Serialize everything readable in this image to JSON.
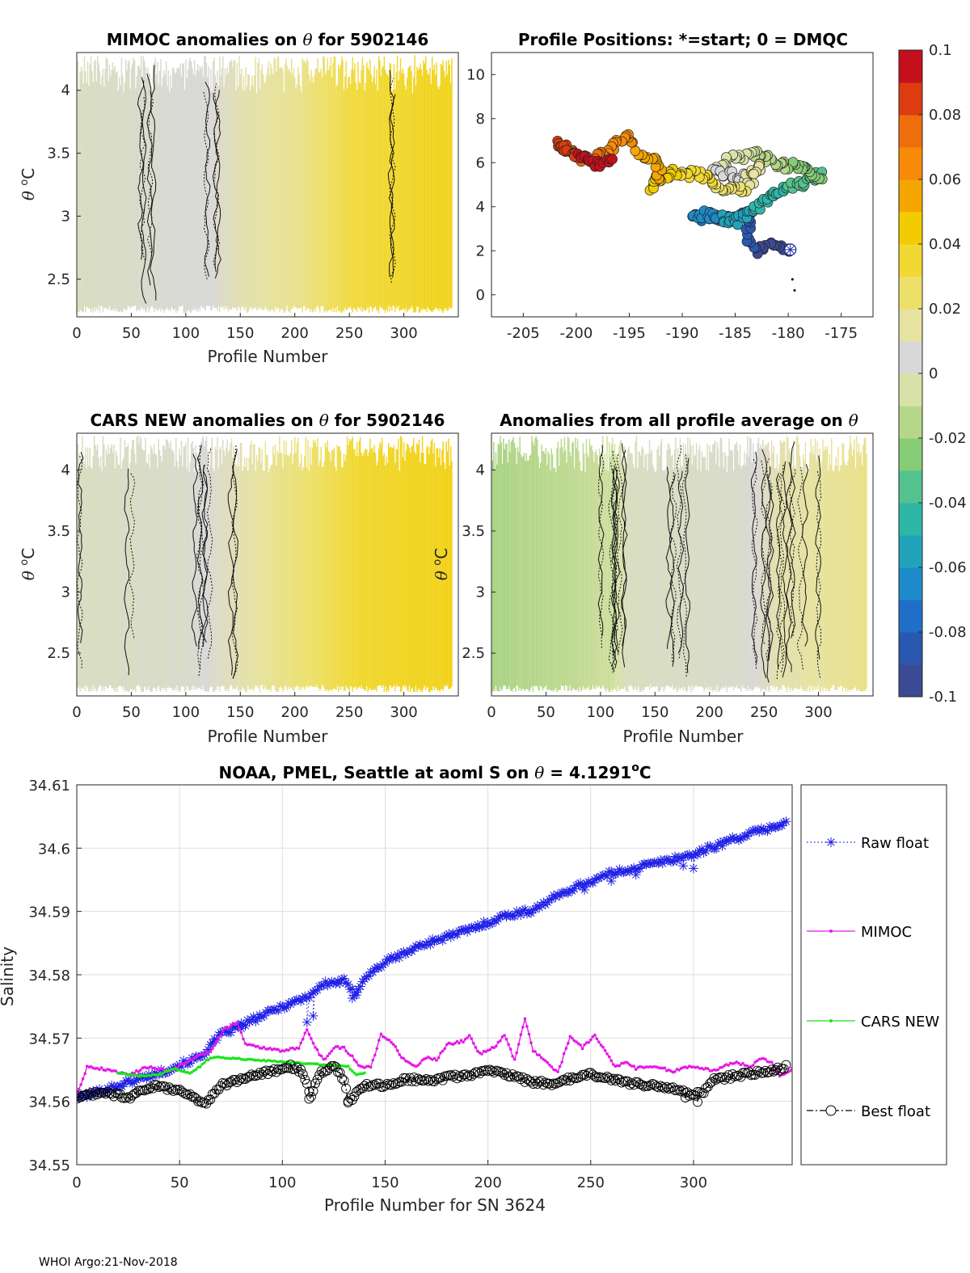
{
  "footer": "WHOI Argo:21-Nov-2018",
  "chart_data": [
    {
      "id": "mimoc",
      "type": "heatmap",
      "title_main": "MIMOC anomalies on ",
      "title_theta": "θ",
      "title_rest": "  for 5902146",
      "xlabel": "Profile Number",
      "ylabel_theta": "θ",
      "ylabel_unit": "C",
      "xlim": [
        0,
        350
      ],
      "ylim": [
        2.2,
        4.3
      ],
      "xticks": [
        0,
        50,
        100,
        150,
        200,
        250,
        300
      ],
      "yticks": [
        2.5,
        3,
        3.5,
        4
      ],
      "anomaly_profile": [
        [
          0,
          0.0
        ],
        [
          60,
          0.002
        ],
        [
          125,
          0.006
        ],
        [
          150,
          0.012
        ],
        [
          200,
          0.018
        ],
        [
          255,
          0.033
        ],
        [
          350,
          0.04
        ]
      ],
      "contours_x": [
        60,
        70,
        120,
        130,
        290
      ]
    },
    {
      "id": "positions",
      "type": "scatter",
      "title": "Profile Positions: *=start; 0 = DMQC",
      "xlim": [
        -208,
        -172
      ],
      "ylim": [
        -1,
        11
      ],
      "xticks": [
        -205,
        -200,
        -195,
        -190,
        -185,
        -180,
        -175
      ],
      "yticks": [
        0,
        2,
        4,
        6,
        8,
        10
      ],
      "track_waypoints": [
        [
          -179.8,
          2.05
        ],
        [
          -181,
          2.3
        ],
        [
          -183,
          2.0
        ],
        [
          -184,
          2.6
        ],
        [
          -183.5,
          3.6
        ],
        [
          -186,
          3.5
        ],
        [
          -189,
          3.5
        ],
        [
          -188,
          3.7
        ],
        [
          -185,
          3.3
        ],
        [
          -183.5,
          3.8
        ],
        [
          -182,
          4.3
        ],
        [
          -181,
          4.7
        ],
        [
          -178.5,
          5.1
        ],
        [
          -177,
          5.5
        ],
        [
          -176.8,
          5.2
        ],
        [
          -178.5,
          5.8
        ],
        [
          -181,
          5.9
        ],
        [
          -182.5,
          6.4
        ],
        [
          -185.5,
          6.2
        ],
        [
          -187,
          5.6
        ],
        [
          -184,
          5.3
        ],
        [
          -182.5,
          5.9
        ],
        [
          -184,
          4.8
        ],
        [
          -186,
          4.7
        ],
        [
          -188,
          5.4
        ],
        [
          -191,
          5.6
        ],
        [
          -193,
          4.8
        ],
        [
          -192,
          5.8
        ],
        [
          -194,
          6.4
        ],
        [
          -195,
          7.2
        ],
        [
          -197,
          6.5
        ],
        [
          -199,
          6.1
        ],
        [
          -202,
          6.9
        ],
        [
          -200,
          6.3
        ],
        [
          -198,
          5.9
        ],
        [
          -196.5,
          6.1
        ]
      ],
      "n_profiles": 344,
      "dmqc_points": [
        [
          -179.6,
          0.7
        ],
        [
          -179.4,
          0.2
        ]
      ],
      "start": [
        -179.8,
        2.05
      ]
    },
    {
      "id": "cars",
      "type": "heatmap",
      "title_main": "CARS NEW anomalies on ",
      "title_theta": "θ",
      "title_rest": " for 5902146",
      "xlabel": "Profile Number",
      "ylabel_theta": "θ",
      "ylabel_unit": "C",
      "xlim": [
        0,
        350
      ],
      "ylim": [
        2.15,
        4.3
      ],
      "xticks": [
        0,
        50,
        100,
        150,
        200,
        250,
        300
      ],
      "yticks": [
        2.5,
        3,
        3.5,
        4
      ],
      "anomaly_profile": [
        [
          0,
          0.0
        ],
        [
          100,
          0.002
        ],
        [
          150,
          0.012
        ],
        [
          220,
          0.026
        ],
        [
          260,
          0.036
        ],
        [
          350,
          0.04
        ]
      ],
      "contours_x": [
        5,
        48,
        110,
        115,
        120,
        143
      ]
    },
    {
      "id": "allavg",
      "type": "heatmap",
      "title_main": "Anomalies from all profile average on ",
      "title_theta": "θ",
      "title_rest": "",
      "xlabel": "Profile Number",
      "ylabel_theta": "θ",
      "ylabel_unit": "C",
      "xlim": [
        0,
        350
      ],
      "ylim": [
        2.15,
        4.3
      ],
      "xticks": [
        0,
        50,
        100,
        150,
        200,
        250,
        300
      ],
      "yticks": [
        2.5,
        3,
        3.5,
        4
      ],
      "anomaly_profile": [
        [
          0,
          -0.018
        ],
        [
          80,
          -0.012
        ],
        [
          110,
          -0.008
        ],
        [
          125,
          0.0
        ],
        [
          230,
          0.002
        ],
        [
          260,
          0.012
        ],
        [
          350,
          0.02
        ]
      ],
      "contours_x": [
        100,
        110,
        115,
        120,
        165,
        175,
        180,
        240,
        250,
        255,
        262,
        268,
        275,
        285,
        300
      ]
    },
    {
      "id": "colorbar",
      "type": "colorbar",
      "limits": [
        -0.1,
        0.1
      ],
      "ticks": [
        "0.1",
        "0.08",
        "0.06",
        "0.04",
        "0.02",
        "0",
        "-0.02",
        "-0.04",
        "-0.06",
        "-0.08",
        "-0.1"
      ],
      "n_levels": 20
    },
    {
      "id": "salinity",
      "type": "line",
      "title_main": "NOAA, PMEL, Seattle at aoml S on ",
      "title_theta": "θ",
      "title_rest": " = 4.1291",
      "title_sup": "o",
      "title_unit": "C",
      "xlabel": "Profile Number for SN 3624",
      "ylabel": "Salinity",
      "xlim": [
        0,
        348
      ],
      "ylim": [
        34.55,
        34.61
      ],
      "xticks": [
        0,
        50,
        100,
        150,
        200,
        250,
        300
      ],
      "yticks": [
        "34.55",
        "34.56",
        "34.57",
        "34.58",
        "34.59",
        "34.6",
        "34.61"
      ],
      "grid": true,
      "legend": "outside-right",
      "series": [
        {
          "name": "Raw float",
          "color": "#1f1fe6",
          "marker": "asterisk",
          "line": "dotted",
          "keypoints": [
            [
              0,
              34.5605
            ],
            [
              20,
              34.5625
            ],
            [
              40,
              34.5645
            ],
            [
              60,
              34.567
            ],
            [
              70,
              34.5705
            ],
            [
              80,
              34.572
            ],
            [
              100,
              34.575
            ],
            [
              112,
              34.5765
            ],
            [
              120,
              34.5785
            ],
            [
              130,
              34.579
            ],
            [
              135,
              34.577
            ],
            [
              140,
              34.5795
            ],
            [
              150,
              34.582
            ],
            [
              170,
              34.585
            ],
            [
              190,
              34.587
            ],
            [
              210,
              34.5895
            ],
            [
              220,
              34.59
            ],
            [
              240,
              34.5935
            ],
            [
              260,
              34.596
            ],
            [
              280,
              34.5975
            ],
            [
              300,
              34.599
            ],
            [
              320,
              34.6015
            ],
            [
              345,
              34.604
            ]
          ],
          "dips": [
            [
              80,
              34.5715
            ],
            [
              112,
              34.5725
            ],
            [
              115,
              34.5735
            ],
            [
              134,
              34.5763
            ],
            [
              136,
              34.5768
            ],
            [
              247,
              34.5934
            ],
            [
              260,
              34.5948
            ],
            [
              272,
              34.5958
            ],
            [
              295,
              34.5972
            ],
            [
              300,
              34.5968
            ]
          ]
        },
        {
          "name": "MIMOC",
          "color": "#e619e6",
          "marker": "dot",
          "line": "solid",
          "keypoints": [
            [
              0,
              34.561
            ],
            [
              5,
              34.5655
            ],
            [
              15,
              34.565
            ],
            [
              25,
              34.5642
            ],
            [
              35,
              34.5655
            ],
            [
              45,
              34.5648
            ],
            [
              55,
              34.5665
            ],
            [
              65,
              34.568
            ],
            [
              72,
              34.5715
            ],
            [
              78,
              34.5725
            ],
            [
              82,
              34.569
            ],
            [
              90,
              34.5685
            ],
            [
              100,
              34.568
            ],
            [
              108,
              34.5685
            ],
            [
              112,
              34.5715
            ],
            [
              116,
              34.5685
            ],
            [
              120,
              34.5665
            ],
            [
              125,
              34.5685
            ],
            [
              130,
              34.5685
            ],
            [
              138,
              34.5655
            ],
            [
              143,
              34.5655
            ],
            [
              148,
              34.5705
            ],
            [
              153,
              34.5695
            ],
            [
              158,
              34.567
            ],
            [
              165,
              34.5655
            ],
            [
              170,
              34.567
            ],
            [
              175,
              34.5665
            ],
            [
              180,
              34.569
            ],
            [
              188,
              34.5695
            ],
            [
              191,
              34.5705
            ],
            [
              196,
              34.5675
            ],
            [
              203,
              34.5685
            ],
            [
              208,
              34.5705
            ],
            [
              213,
              34.5665
            ],
            [
              218,
              34.573
            ],
            [
              222,
              34.568
            ],
            [
              228,
              34.5665
            ],
            [
              234,
              34.5645
            ],
            [
              240,
              34.5702
            ],
            [
              246,
              34.5685
            ],
            [
              252,
              34.5705
            ],
            [
              258,
              34.5675
            ],
            [
              262,
              34.5655
            ],
            [
              268,
              34.5662
            ],
            [
              272,
              34.5652
            ],
            [
              280,
              34.5656
            ],
            [
              290,
              34.5648
            ],
            [
              300,
              34.5656
            ],
            [
              310,
              34.5648
            ],
            [
              320,
              34.5662
            ],
            [
              328,
              34.5655
            ],
            [
              333,
              34.5668
            ],
            [
              338,
              34.5662
            ],
            [
              342,
              34.5638
            ],
            [
              348,
              34.5652
            ]
          ]
        },
        {
          "name": "CARS NEW",
          "color": "#19e619",
          "marker": "dot",
          "line": "solid",
          "keypoints": [
            [
              20,
              34.5645
            ],
            [
              30,
              34.564
            ],
            [
              40,
              34.5642
            ],
            [
              47,
              34.5652
            ],
            [
              55,
              34.5645
            ],
            [
              60,
              34.5655
            ],
            [
              63,
              34.5665
            ],
            [
              67,
              34.567
            ],
            [
              132,
              34.5655
            ],
            [
              136,
              34.5642
            ],
            [
              140,
              34.5645
            ]
          ]
        },
        {
          "name": "Best float",
          "color": "#000000",
          "marker": "circle",
          "line": "dashdot",
          "keypoints": [
            [
              0,
              34.5605
            ],
            [
              5,
              34.561
            ],
            [
              12,
              34.5615
            ],
            [
              20,
              34.561
            ],
            [
              25,
              34.5605
            ],
            [
              30,
              34.5615
            ],
            [
              40,
              34.5625
            ],
            [
              45,
              34.562
            ],
            [
              52,
              34.5615
            ],
            [
              58,
              34.5605
            ],
            [
              62,
              34.5595
            ],
            [
              65,
              34.5605
            ],
            [
              70,
              34.5625
            ],
            [
              80,
              34.5635
            ],
            [
              90,
              34.5645
            ],
            [
              100,
              34.565
            ],
            [
              104,
              34.5655
            ],
            [
              110,
              34.5645
            ],
            [
              114,
              34.561
            ],
            [
              118,
              34.5645
            ],
            [
              125,
              34.5655
            ],
            [
              130,
              34.5635
            ],
            [
              132,
              34.56
            ],
            [
              134,
              34.5605
            ],
            [
              140,
              34.5625
            ],
            [
              150,
              34.5625
            ],
            [
              160,
              34.5635
            ],
            [
              175,
              34.5635
            ],
            [
              190,
              34.5642
            ],
            [
              200,
              34.5648
            ],
            [
              210,
              34.5642
            ],
            [
              220,
              34.5632
            ],
            [
              230,
              34.5628
            ],
            [
              240,
              34.5635
            ],
            [
              250,
              34.5642
            ],
            [
              260,
              34.5635
            ],
            [
              270,
              34.5628
            ],
            [
              280,
              34.5625
            ],
            [
              290,
              34.562
            ],
            [
              300,
              34.561
            ],
            [
              305,
              34.5615
            ],
            [
              310,
              34.5635
            ],
            [
              320,
              34.564
            ],
            [
              330,
              34.5645
            ],
            [
              340,
              34.565
            ],
            [
              345,
              34.5655
            ]
          ],
          "dips": [
            [
              113,
              34.5604
            ],
            [
              132,
              34.5598
            ],
            [
              296,
              34.5606
            ],
            [
              302,
              34.5599
            ]
          ]
        }
      ]
    }
  ]
}
